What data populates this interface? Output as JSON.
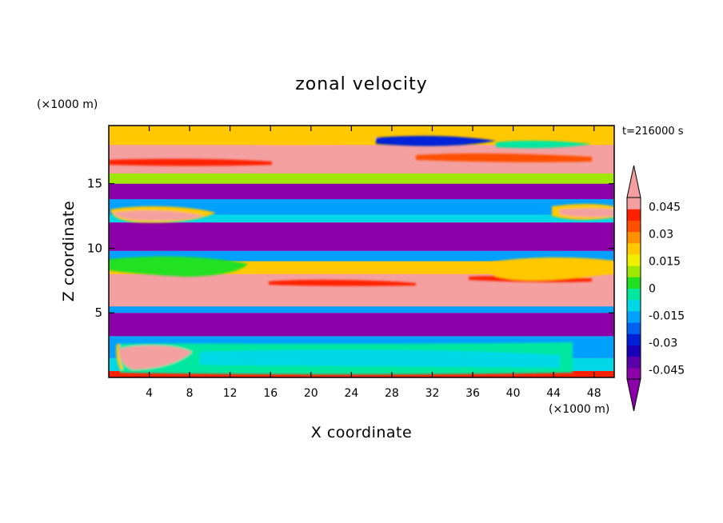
{
  "chart_data": {
    "type": "heatmap",
    "title": "zonal velocity",
    "xlabel": "X coordinate",
    "ylabel": "Z coordinate",
    "x_unit": "(×1000 m)",
    "y_unit": "(×1000 m)",
    "time_label": "t=216000 s",
    "xlim": [
      0,
      50
    ],
    "ylim": [
      0,
      19.5
    ],
    "x_ticks": [
      4,
      8,
      12,
      16,
      20,
      24,
      28,
      32,
      36,
      40,
      44,
      48
    ],
    "y_ticks": [
      5,
      10,
      15
    ],
    "colorbar": {
      "tick_labels": [
        "0.045",
        "0.03",
        "0.015",
        "0",
        "-0.015",
        "-0.03",
        "-0.045"
      ],
      "tick_values": [
        0.045,
        0.03,
        0.015,
        0,
        -0.015,
        -0.03,
        -0.045
      ],
      "range": [
        -0.05,
        0.05
      ],
      "extend": "both",
      "colors_low_to_high": [
        "#8b00a8",
        "#5a00a8",
        "#1a00b8",
        "#0020d8",
        "#0060f0",
        "#00a0ff",
        "#00d8e8",
        "#00e8a0",
        "#20e020",
        "#a0e800",
        "#f0f000",
        "#ffc800",
        "#ff9000",
        "#ff5000",
        "#ff2000",
        "#f4a0a0"
      ]
    },
    "bands": [
      {
        "z": [
          0,
          0.5
        ],
        "value": 0.045
      },
      {
        "z": [
          0.5,
          1.5
        ],
        "value": -0.01
      },
      {
        "z": [
          1.5,
          3.2
        ],
        "value": -0.02
      },
      {
        "z": [
          3.2,
          5.0
        ],
        "value": -0.05
      },
      {
        "z": [
          5.0,
          5.5
        ],
        "value": -0.02
      },
      {
        "z": [
          5.5,
          8.0
        ],
        "value": 0.05
      },
      {
        "z": [
          8.0,
          9.0
        ],
        "value": 0.02
      },
      {
        "z": [
          9.0,
          9.8
        ],
        "value": -0.02
      },
      {
        "z": [
          9.8,
          12.0
        ],
        "value": -0.05
      },
      {
        "z": [
          12.0,
          12.6
        ],
        "value": -0.01
      },
      {
        "z": [
          12.6,
          13.8
        ],
        "value": -0.02
      },
      {
        "z": [
          13.8,
          15.0
        ],
        "value": -0.05
      },
      {
        "z": [
          15.0,
          15.8
        ],
        "value": 0.01
      },
      {
        "z": [
          15.8,
          18.0
        ],
        "value": 0.05
      },
      {
        "z": [
          18.0,
          19.5
        ],
        "value": 0.02
      }
    ]
  }
}
